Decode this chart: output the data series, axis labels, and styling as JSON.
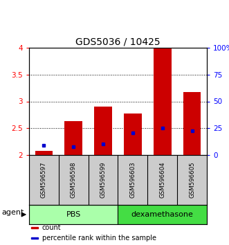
{
  "title": "GDS5036 / 10425",
  "samples": [
    "GSM596597",
    "GSM596598",
    "GSM596599",
    "GSM596603",
    "GSM596604",
    "GSM596605"
  ],
  "bar_heights": [
    2.08,
    2.63,
    2.9,
    2.78,
    4.0,
    3.18
  ],
  "bar_bottom": 2.0,
  "blue_values": [
    2.18,
    2.15,
    2.21,
    2.41,
    2.5,
    2.45
  ],
  "ylim_left": [
    2.0,
    4.0
  ],
  "ylim_right": [
    0,
    100
  ],
  "yticks_left": [
    2.0,
    2.5,
    3.0,
    3.5,
    4.0
  ],
  "yticks_right": [
    0,
    25,
    50,
    75,
    100
  ],
  "ytick_labels_left": [
    "2",
    "2.5",
    "3",
    "3.5",
    "4"
  ],
  "ytick_labels_right": [
    "0",
    "25",
    "50",
    "75",
    "100%"
  ],
  "groups": [
    {
      "label": "PBS",
      "indices": [
        0,
        1,
        2
      ],
      "color": "#aaffaa"
    },
    {
      "label": "dexamethasone",
      "indices": [
        3,
        4,
        5
      ],
      "color": "#44dd44"
    }
  ],
  "bar_color": "#cc0000",
  "blue_color": "#0000cc",
  "bar_width": 0.6,
  "grid_lines": [
    2.5,
    3.0,
    3.5
  ],
  "legend_items": [
    {
      "label": "count",
      "color": "#cc0000"
    },
    {
      "label": "percentile rank within the sample",
      "color": "#0000cc"
    }
  ],
  "agent_label": "agent",
  "background_color": "#ffffff",
  "label_area_bg": "#cccccc",
  "title_fontsize": 10,
  "tick_fontsize": 7.5,
  "sample_fontsize": 6.2,
  "group_fontsize": 8,
  "legend_fontsize": 7,
  "agent_fontsize": 8
}
